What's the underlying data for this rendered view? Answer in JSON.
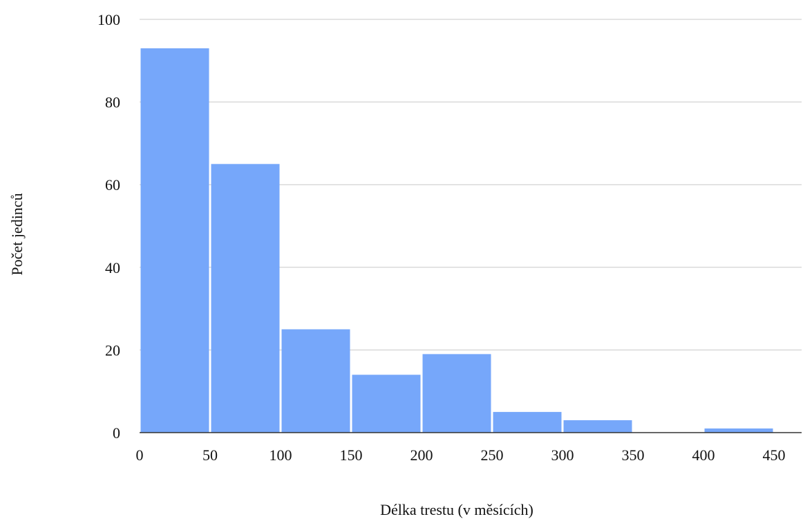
{
  "chart_data": {
    "type": "bar",
    "histogram": true,
    "bins": [
      {
        "start": 0,
        "end": 50,
        "value": 93
      },
      {
        "start": 50,
        "end": 100,
        "value": 65
      },
      {
        "start": 100,
        "end": 150,
        "value": 25
      },
      {
        "start": 150,
        "end": 200,
        "value": 14
      },
      {
        "start": 200,
        "end": 250,
        "value": 19
      },
      {
        "start": 250,
        "end": 300,
        "value": 5
      },
      {
        "start": 300,
        "end": 350,
        "value": 3
      },
      {
        "start": 350,
        "end": 400,
        "value": 0
      },
      {
        "start": 400,
        "end": 450,
        "value": 1
      }
    ],
    "xlabel": "Délka trestu (v měsících)",
    "ylabel": "Počet jedinců",
    "xlim": [
      0,
      450
    ],
    "ylim": [
      0,
      100
    ],
    "x_ticks": [
      0,
      50,
      100,
      150,
      200,
      250,
      300,
      350,
      400,
      450
    ],
    "y_ticks": [
      0,
      20,
      40,
      60,
      80,
      100
    ],
    "grid": "horizontal",
    "bar_color": "#76a7fa",
    "legend": "none"
  }
}
